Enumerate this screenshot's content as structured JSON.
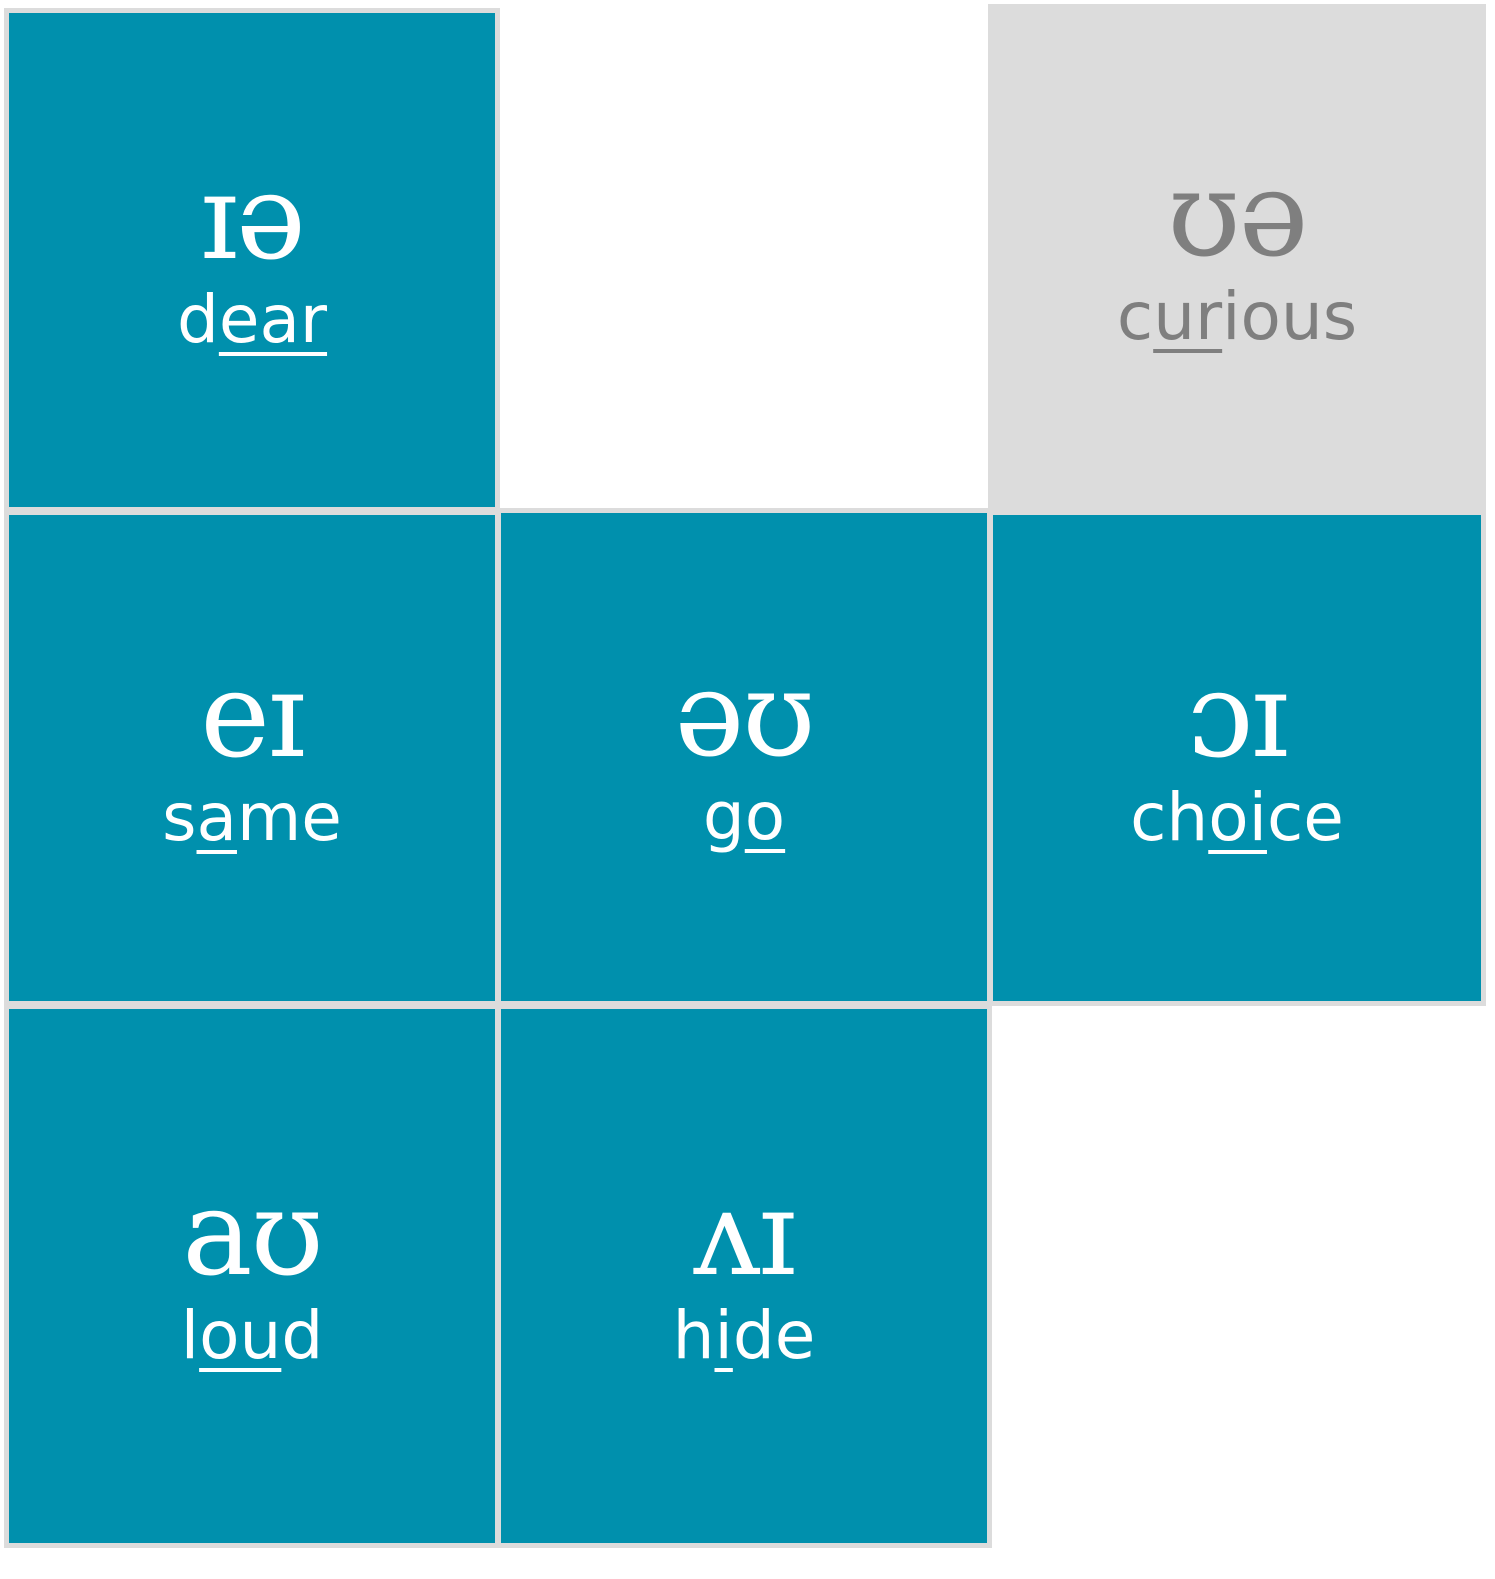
{
  "tiles": [
    {
      "id": "t-iae",
      "symbol": "ɪə",
      "word_before": "d",
      "word_mark": "ear",
      "word_after": "",
      "state": "active"
    },
    {
      "id": "t-uae",
      "symbol": "ʊə",
      "word_before": "c",
      "word_mark": "ur",
      "word_after": "ious",
      "state": "muted"
    },
    {
      "id": "t-ei",
      "symbol": "eɪ",
      "word_before": "s",
      "word_mark": "a",
      "word_after": "me",
      "state": "active"
    },
    {
      "id": "t-eu",
      "symbol": "əʊ",
      "word_before": "g",
      "word_mark": "o",
      "word_after": "",
      "state": "active"
    },
    {
      "id": "t-oi",
      "symbol": "ɔɪ",
      "word_before": "ch",
      "word_mark": "oi",
      "word_after": "ce",
      "state": "active"
    },
    {
      "id": "t-au",
      "symbol": "aʊ",
      "word_before": "l",
      "word_mark": "ou",
      "word_after": "d",
      "state": "active"
    },
    {
      "id": "t-ai",
      "symbol": "ʌɪ",
      "word_before": "h",
      "word_mark": "i",
      "word_after": "de",
      "state": "active"
    }
  ],
  "colors": {
    "active_tile": "#0090ad",
    "muted_tile": "#dcdcdc",
    "active_text": "#ffffff",
    "muted_text": "#7f7f7f",
    "tile_border": "#dcdcdc"
  }
}
